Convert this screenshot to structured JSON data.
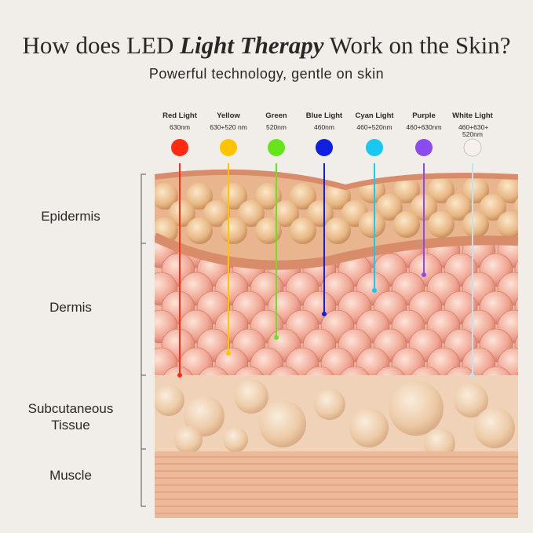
{
  "title": {
    "before": "How does LED ",
    "emphasis": "Light Therapy",
    "after": " Work on the Skin?"
  },
  "subtitle": "Powerful technology, gentle on skin",
  "lights": [
    {
      "name": "Red Light",
      "wavelength": "630nm",
      "color": "#ff2a10",
      "depth_layer": "Subcutaneous Tissue"
    },
    {
      "name": "Yellow",
      "wavelength": "630+520 nm",
      "color": "#ffc400",
      "depth_layer": "Dermis"
    },
    {
      "name": "Green",
      "wavelength": "520nm",
      "color": "#66e61a",
      "depth_layer": "Dermis"
    },
    {
      "name": "Blue Light",
      "wavelength": "460nm",
      "color": "#1020e0",
      "depth_layer": "Dermis"
    },
    {
      "name": "Cyan Light",
      "wavelength": "460+520nm",
      "color": "#18c8f0",
      "depth_layer": "Dermis"
    },
    {
      "name": "Purple",
      "wavelength": "460+630nm",
      "color": "#8a4cf0",
      "depth_layer": "Dermis"
    },
    {
      "name": "White Light",
      "wavelength": "460+630+ 520nm",
      "color": "#f7efec",
      "depth_layer": "Subcutaneous Tissue"
    }
  ],
  "layers": [
    "Epidermis",
    "Dermis",
    "Subcutaneous Tissue",
    "Muscle"
  ]
}
